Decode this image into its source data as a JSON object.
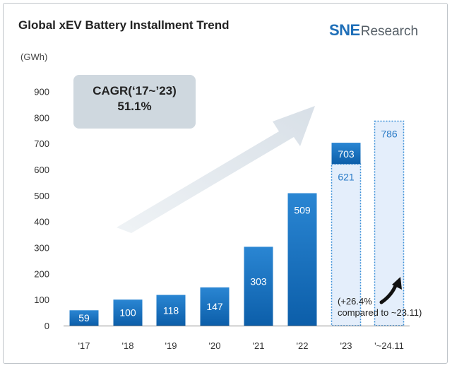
{
  "header": {
    "title": "Global xEV Battery Installment Trend",
    "logo_mark": "SNE",
    "logo_word": "Research"
  },
  "annotations": {
    "cagr_label": "CAGR(‘17~’23)",
    "cagr_value": "51.1%",
    "note_line1": "(+26.4%",
    "note_line2": "compared to ~23.11)"
  },
  "colors": {
    "bar_gradient_top": "#2a86d3",
    "bar_gradient_bottom": "#0c5ea9",
    "dotted_fill": "#e4eefb",
    "dotted_stroke": "#3a8fd8",
    "dotted_label": "#2a7bc7",
    "arrow": "#e2e8ee",
    "logo_accent": "#1f6fb8"
  },
  "chart_data": {
    "type": "bar",
    "title": "Global xEV Battery Installment Trend",
    "ylabel": "(GWh)",
    "xlabel": "",
    "ylim": [
      0,
      900
    ],
    "yticks": [
      0,
      100,
      200,
      300,
      400,
      500,
      600,
      700,
      800,
      900
    ],
    "grid": false,
    "categories": [
      "'17",
      "'18",
      "'19",
      "'20",
      "'21",
      "'22",
      "'23",
      "'~24.11"
    ],
    "values": [
      59,
      100,
      118,
      147,
      303,
      509,
      703,
      786
    ],
    "value_labels": [
      "59",
      "100",
      "118",
      "147",
      "303",
      "509",
      "703",
      "786"
    ],
    "partial_23": {
      "category": "'23",
      "comparison_value": 621,
      "label": "621"
    },
    "styles": [
      "solid",
      "solid",
      "solid",
      "solid",
      "solid",
      "solid",
      "mixed",
      "dotted"
    ]
  }
}
